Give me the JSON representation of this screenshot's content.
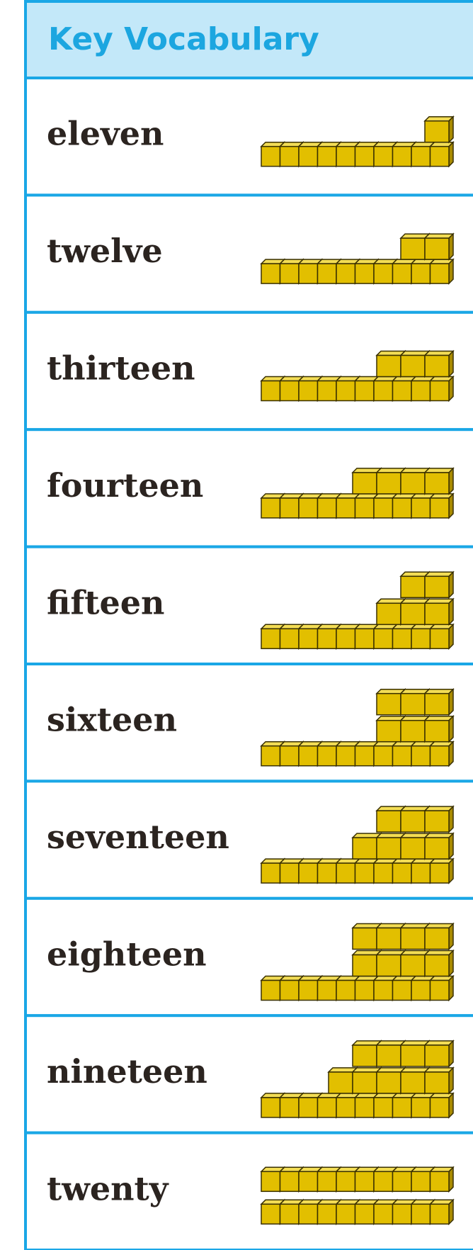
{
  "header": {
    "title": "Key Vocabulary"
  },
  "rows": [
    "eleven",
    "twelve",
    "thirteen",
    "fourteen",
    "fifteen",
    "sixteen",
    "seventeen",
    "eighteen",
    "nineteen",
    "twenty"
  ]
}
